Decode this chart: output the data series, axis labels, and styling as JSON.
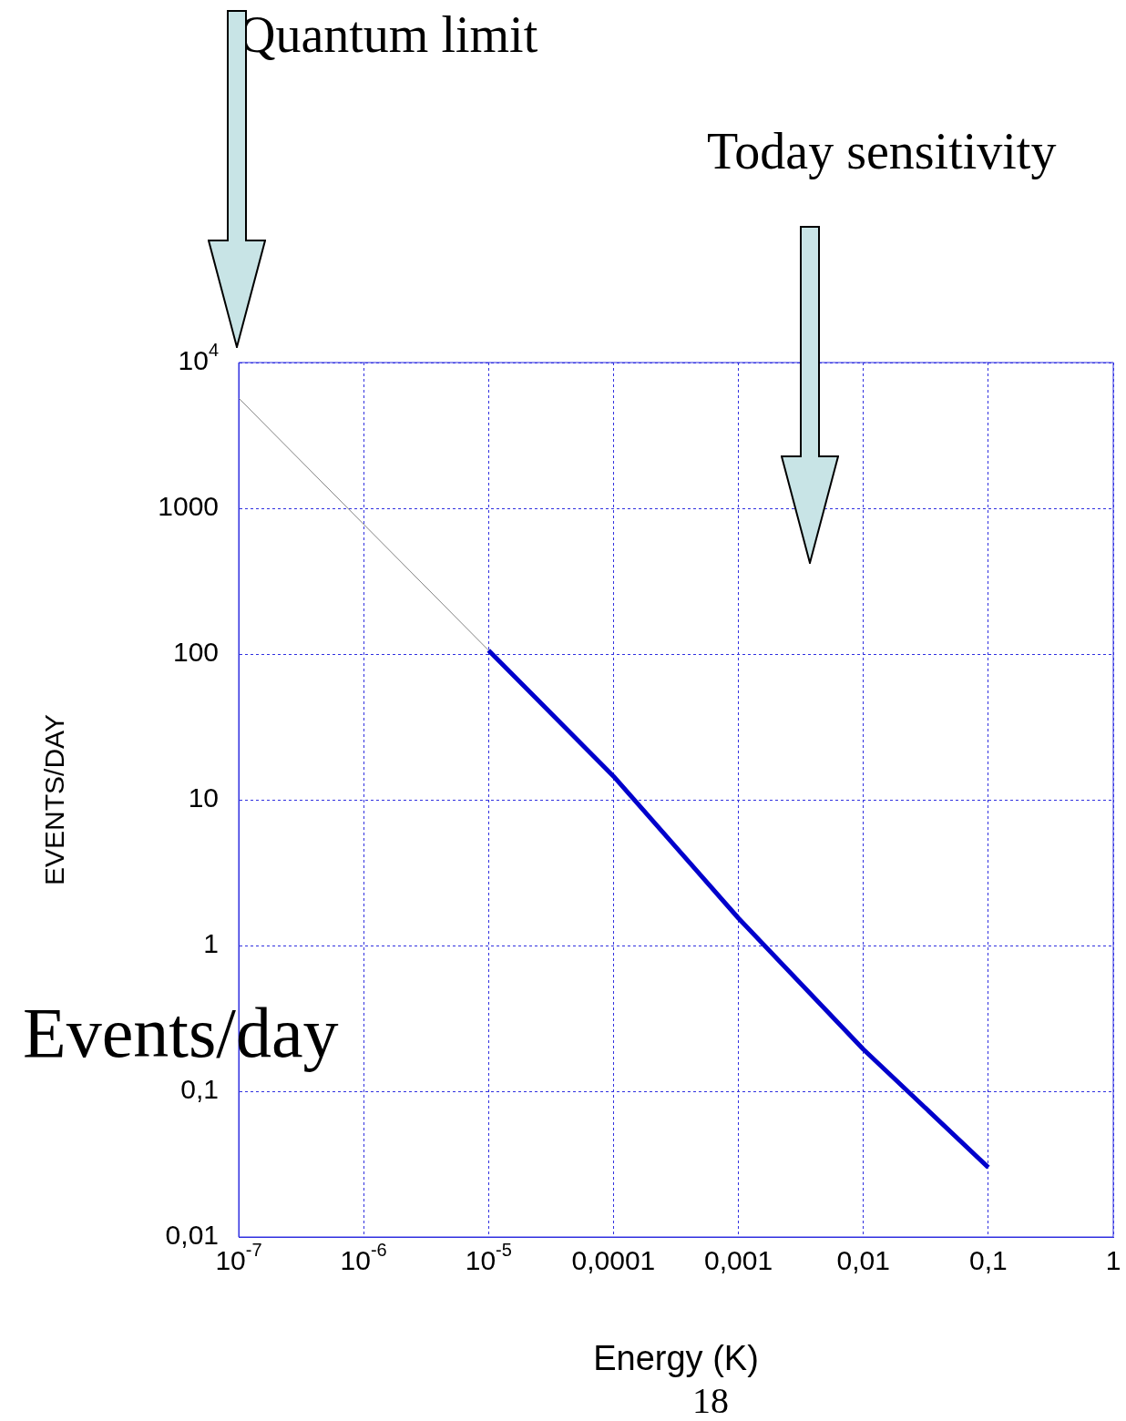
{
  "chart_data": {
    "type": "line",
    "xlabel": "Energy (K)",
    "ylabel": "EVENTS/DAY",
    "series": [
      {
        "color": "#808080",
        "x": [
          1e-07,
          1e-05
        ],
        "values": [
          5700,
          106
        ]
      },
      {
        "color": "#0000cc",
        "x": [
          1e-05,
          0.0001,
          0.001,
          0.01,
          0.1
        ],
        "values": [
          106,
          14.5,
          1.54,
          0.194,
          0.03
        ]
      }
    ],
    "log": "xy",
    "xlim": [
      1e-07,
      1
    ],
    "ylim": [
      0.01,
      10000
    ],
    "xticks": [
      {
        "value": 1e-07,
        "label": "10$^{-7}$"
      },
      {
        "value": 1e-06,
        "label": "10$^{-6}$"
      },
      {
        "value": 1e-05,
        "label": "10$^{-5}$"
      },
      {
        "value": 0.0001,
        "label": "0,0001"
      },
      {
        "value": 0.001,
        "label": "0,001"
      },
      {
        "value": 0.01,
        "label": "0,01"
      },
      {
        "value": 0.1,
        "label": "0,1"
      },
      1
    ],
    "yticks": [
      {
        "value": 0.01,
        "label": "0,01"
      },
      {
        "value": 0.1,
        "label": "0,1"
      },
      1,
      10,
      100,
      1000,
      {
        "value": 10000,
        "label": "10$^{4}$"
      }
    ],
    "grid": true,
    "legend": false,
    "marker": "none",
    "line_style": "solid",
    "annotations": [
      "Quantum limit",
      "Today sensitivity",
      "Events/day",
      "18"
    ]
  }
}
